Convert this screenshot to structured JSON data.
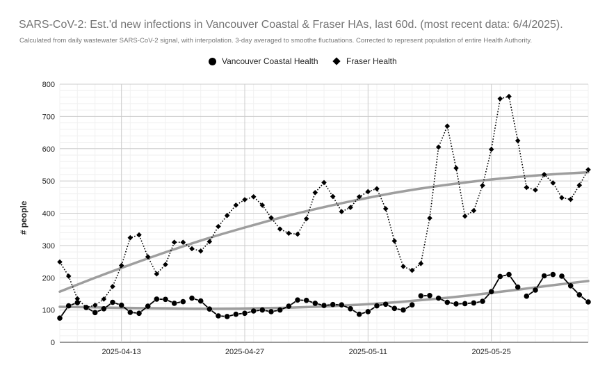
{
  "chart_data": {
    "type": "line",
    "title": "SARS-CoV-2: Est.'d new infections in Vancouver Coastal & Fraser HAs, last 60d. (most recent data: 6/4/2025).",
    "subtitle": "Calculated from daily wastewater SARS-CoV-2 signal, with interpolation. 3-day averaged to smoothe fluctuations. Corrected to represent population of entire Health Authority.",
    "ylabel": "# people",
    "xlabel": "",
    "ylim": [
      0,
      800
    ],
    "yticks": [
      0,
      100,
      200,
      300,
      400,
      500,
      600,
      700,
      800
    ],
    "xticks": [
      "2025-04-13",
      "2025-04-27",
      "2025-05-11",
      "2025-05-25"
    ],
    "x_start": "2025-04-06",
    "grid": true,
    "legend_position": "top",
    "series": [
      {
        "name": "Vancouver Coastal Health",
        "marker": "circle",
        "line_style": "solid",
        "color": "#000000",
        "values": [
          75,
          113,
          123,
          108,
          92,
          104,
          124,
          115,
          93,
          90,
          112,
          134,
          133,
          121,
          126,
          137,
          128,
          103,
          82,
          80,
          87,
          90,
          97,
          100,
          95,
          100,
          112,
          131,
          130,
          121,
          114,
          117,
          116,
          104,
          87,
          95,
          113,
          118,
          105,
          100,
          116,
          144,
          145,
          137,
          124,
          119,
          120,
          122,
          127,
          157,
          204,
          210,
          171,
          143,
          162,
          206,
          210,
          205,
          175,
          147,
          125
        ],
        "gaps_after": [
          2,
          14,
          40,
          42,
          52,
          56
        ]
      },
      {
        "name": "Fraser Health",
        "marker": "diamond",
        "line_style": "dotted",
        "color": "#000000",
        "values": [
          249,
          205,
          135,
          108,
          115,
          134,
          173,
          238,
          324,
          333,
          265,
          212,
          241,
          310,
          310,
          290,
          283,
          312,
          359,
          393,
          425,
          442,
          451,
          425,
          386,
          351,
          338,
          335,
          383,
          464,
          495,
          452,
          405,
          418,
          451,
          467,
          476,
          414,
          314,
          235,
          223,
          244,
          385,
          605,
          670,
          540,
          391,
          408,
          486,
          598,
          755,
          762,
          625,
          480,
          472,
          520,
          494,
          448,
          443,
          487,
          535
        ]
      }
    ],
    "trendlines": [
      {
        "series": "Vancouver Coastal Health",
        "color": "#999999",
        "values": [
          110,
          108,
          106,
          105,
          104,
          105,
          107,
          111,
          117,
          125,
          135,
          147,
          161,
          176,
          190
        ]
      },
      {
        "series": "Fraser Health",
        "color": "#999999",
        "values": [
          157,
          203,
          246,
          287,
          325,
          359,
          391,
          419,
          444,
          466,
          484,
          499,
          511,
          520,
          527
        ]
      }
    ],
    "trendline_x": [
      0,
      4.2857,
      8.5714,
      12.8571,
      17.1429,
      21.4286,
      25.7143,
      30,
      34.2857,
      38.5714,
      42.8571,
      47.1429,
      51.4286,
      55.7143,
      60
    ]
  }
}
